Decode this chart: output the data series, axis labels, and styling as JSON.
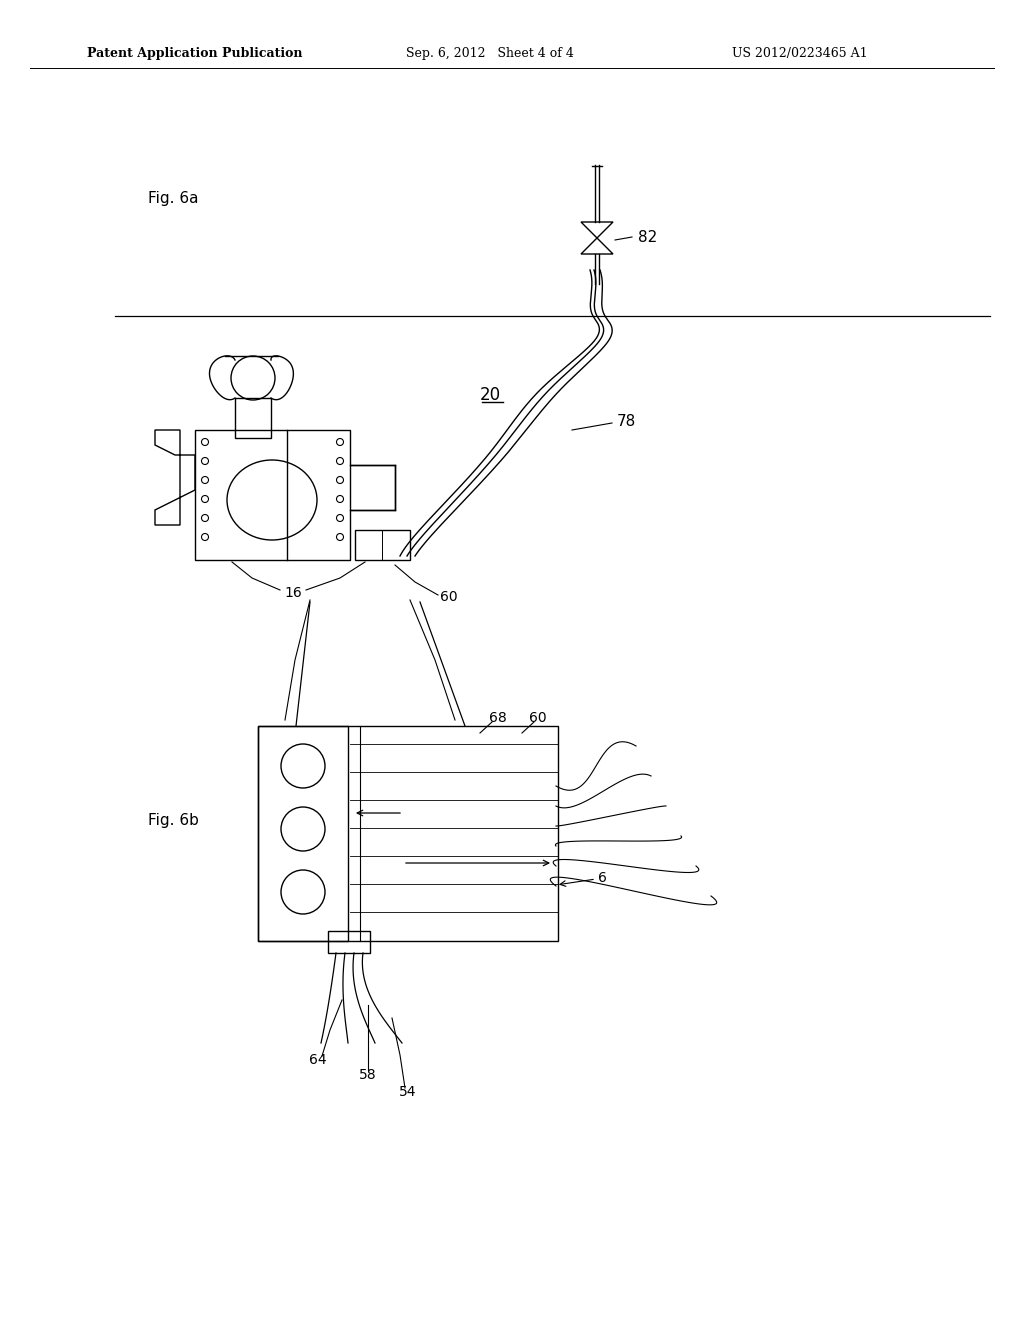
{
  "bg_color": "#ffffff",
  "header_left": "Patent Application Publication",
  "header_mid": "Sep. 6, 2012   Sheet 4 of 4",
  "header_right": "US 2012/0223465 A1",
  "fig6a_label": "Fig. 6a",
  "fig6b_label": "Fig. 6b",
  "label_20": "20",
  "label_78": "78",
  "label_82": "82",
  "label_16": "16",
  "label_60a": "60",
  "label_60b": "60",
  "label_68": "68",
  "label_6": "6",
  "label_64": "64",
  "label_58": "58",
  "label_54": "54"
}
